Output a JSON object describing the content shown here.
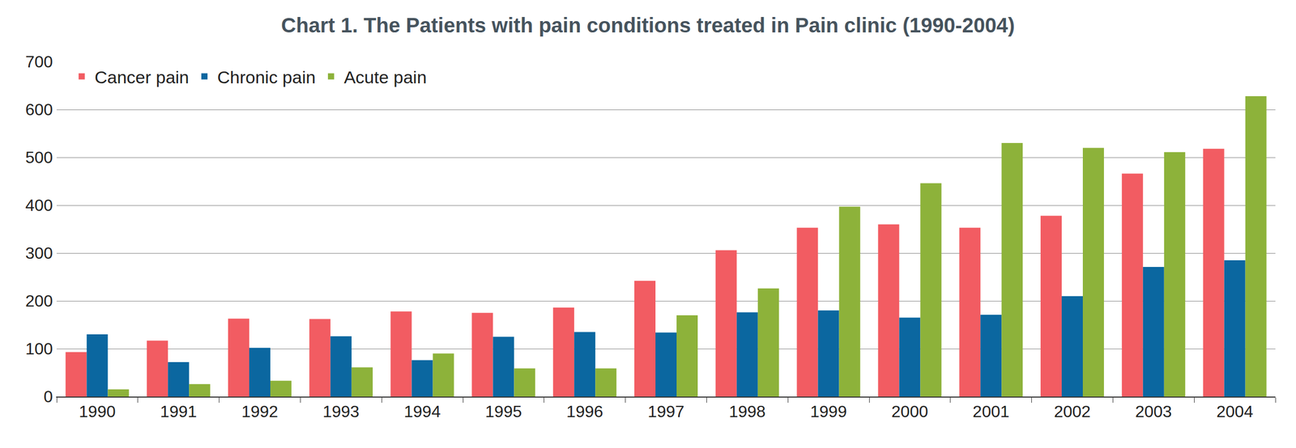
{
  "chart_data": {
    "type": "bar",
    "title": "Chart 1. The Patients with pain conditions treated in Pain clinic (1990-2004)",
    "categories": [
      "1990",
      "1991",
      "1992",
      "1993",
      "1994",
      "1995",
      "1996",
      "1997",
      "1998",
      "1999",
      "2000",
      "2001",
      "2002",
      "2003",
      "2004"
    ],
    "series": [
      {
        "name": "Cancer pain",
        "color": "#f25c62",
        "values": [
          93,
          117,
          163,
          162,
          178,
          175,
          186,
          242,
          306,
          353,
          360,
          353,
          378,
          466,
          518
        ]
      },
      {
        "name": "Chronic pain",
        "color": "#0b67a0",
        "values": [
          130,
          72,
          102,
          126,
          76,
          125,
          135,
          134,
          176,
          180,
          165,
          171,
          210,
          271,
          285
        ]
      },
      {
        "name": "Acute pain",
        "color": "#8db23a",
        "values": [
          15,
          26,
          33,
          61,
          90,
          59,
          59,
          170,
          226,
          397,
          446,
          530,
          520,
          511,
          628
        ]
      }
    ],
    "ylim": [
      0,
      700
    ],
    "yticks": [
      0,
      100,
      200,
      300,
      400,
      500,
      600,
      700
    ],
    "grid": true,
    "legend": "upper left"
  }
}
